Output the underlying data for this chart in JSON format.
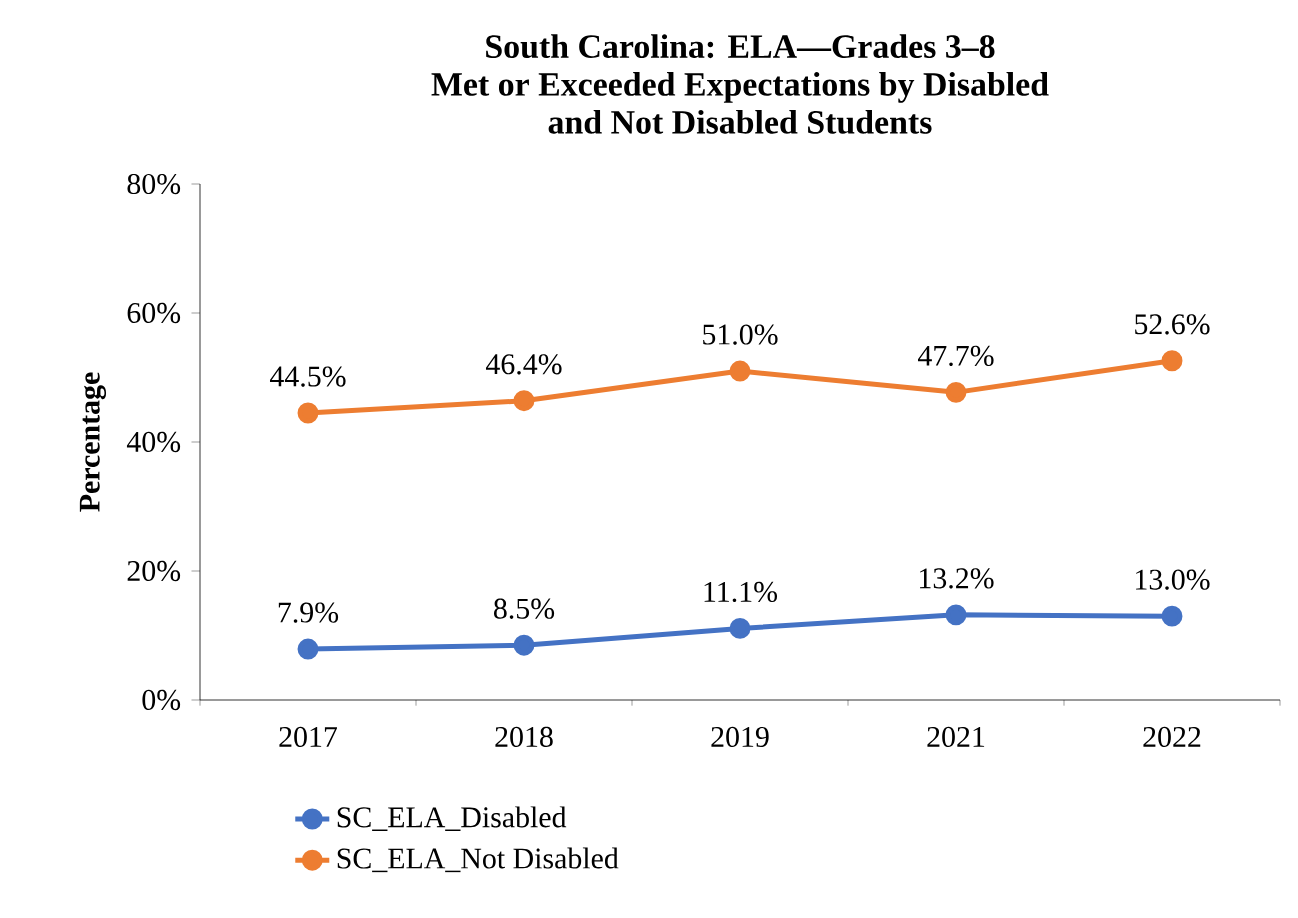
{
  "chart_data": {
    "type": "line",
    "title": "South Carolina: ELA—Grades 3–8\nMet or Exceeded Expectations by Disabled\nand Not Disabled Students",
    "ylabel": "Percentage",
    "categories": [
      "2017",
      "2018",
      "2019",
      "2021",
      "2022"
    ],
    "series": [
      {
        "name": "SC_ELA_Disabled",
        "color": "#4472c4",
        "values": [
          7.9,
          8.5,
          11.1,
          13.2,
          13.0
        ],
        "value_labels": [
          "7.9%",
          "8.5%",
          "11.1%",
          "13.2%",
          "13.0%"
        ]
      },
      {
        "name": "SC_ELA_Not Disabled",
        "color": "#ed7d31",
        "values": [
          44.5,
          46.4,
          51.0,
          47.7,
          52.6
        ],
        "value_labels": [
          "44.5%",
          "46.4%",
          "51.0%",
          "47.7%",
          "52.6%"
        ]
      }
    ],
    "ylim": [
      0,
      80
    ],
    "yticks": [
      {
        "value": 0,
        "label": "0%"
      },
      {
        "value": 20,
        "label": "20%"
      },
      {
        "value": 40,
        "label": "40%"
      },
      {
        "value": 60,
        "label": "60%"
      },
      {
        "value": 80,
        "label": "80%"
      }
    ],
    "grid": false,
    "legend": "bottom",
    "marker": "circle",
    "line_style": "solid"
  }
}
